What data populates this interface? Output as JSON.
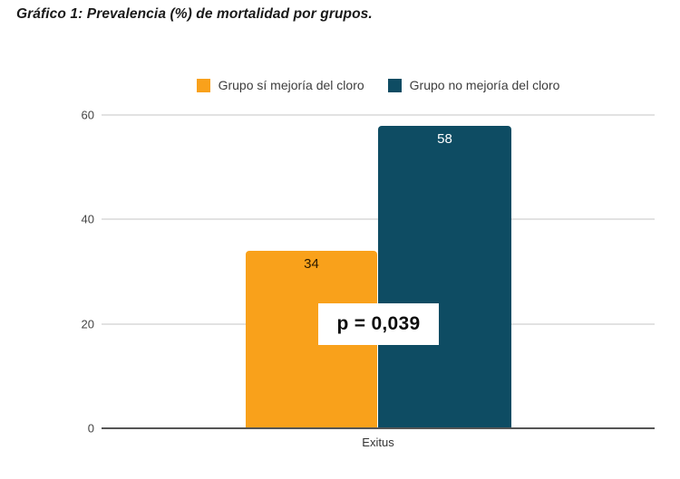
{
  "page": {
    "title": "Gráfico 1: Prevalencia (%) de mortalidad por grupos."
  },
  "chart_data": {
    "type": "bar",
    "title": "Gráfico 1: Prevalencia (%) de mortalidad por grupos.",
    "categories": [
      "Exitus"
    ],
    "series": [
      {
        "name": "Grupo sí mejoría del cloro",
        "values": [
          34
        ],
        "color": "#F9A11B",
        "label_color": "#2B1A00"
      },
      {
        "name": "Grupo no mejoría del cloro",
        "values": [
          58
        ],
        "color": "#0E4C63",
        "label_color": "#FFFFFF"
      }
    ],
    "ylim": [
      0,
      60
    ],
    "yticks": [
      0,
      20,
      40,
      60
    ],
    "grid": true,
    "legend_position": "top-center",
    "annotation": "p = 0,039",
    "xlabel": "",
    "ylabel": ""
  },
  "colors": {
    "gridline": "#E2E2E2",
    "axis_line": "#555555",
    "tick_text": "#444444",
    "legend_text": "#3D3D3D",
    "background": "#FFFFFF"
  }
}
